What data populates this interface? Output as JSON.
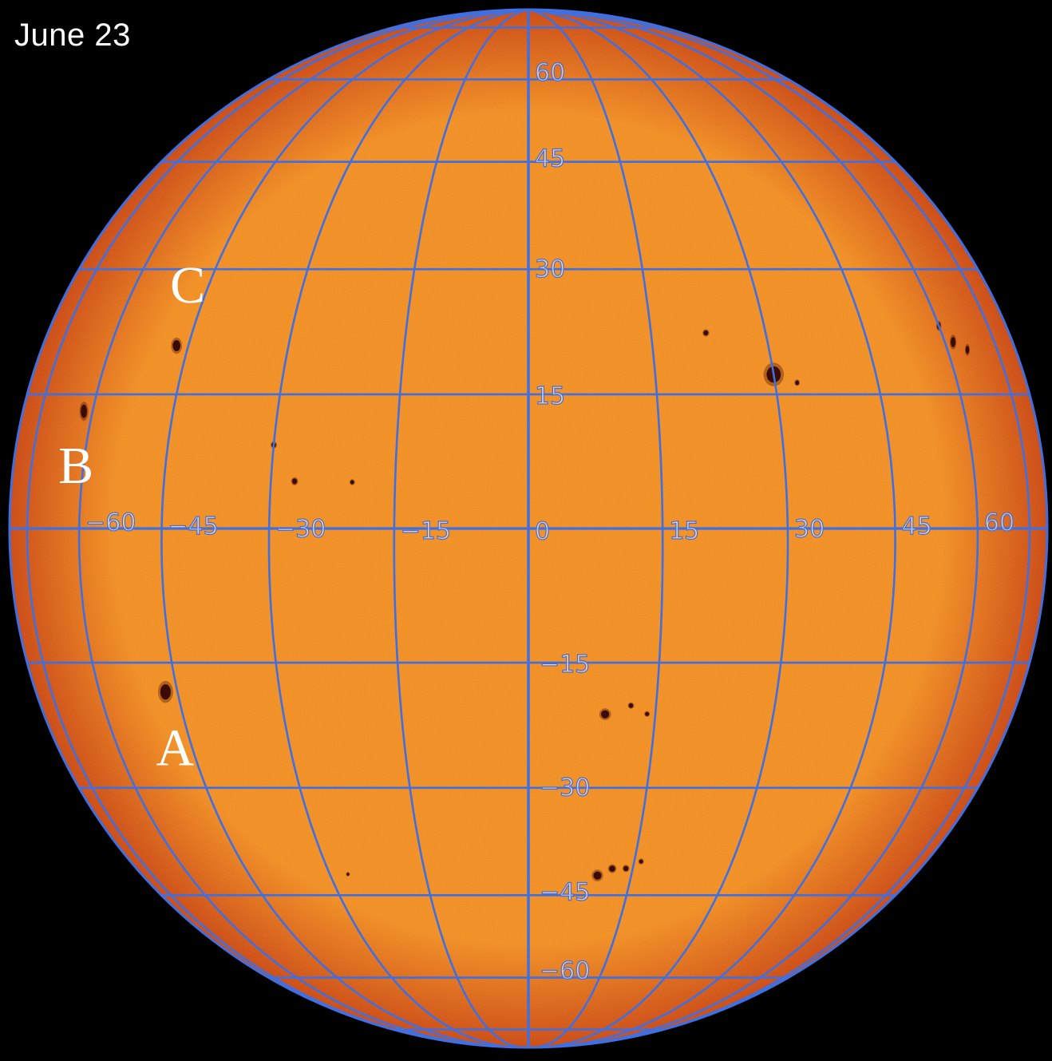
{
  "date_label": "June 23",
  "colors": {
    "background": "#000000",
    "photosphere": "#f08a1c",
    "limb": "#c8420c",
    "grid": "#3f6fe0",
    "spot": "#3a0a04",
    "text": "#ffffff"
  },
  "grid": {
    "longitudes": [
      -75,
      -60,
      -45,
      -30,
      -15,
      0,
      15,
      30,
      45,
      60,
      75
    ],
    "latitudes": [
      -75,
      -60,
      -45,
      -30,
      -15,
      0,
      15,
      30,
      45,
      60,
      75
    ],
    "longitude_labels": [
      {
        "lon": -60,
        "text": "−60"
      },
      {
        "lon": -45,
        "text": "−45"
      },
      {
        "lon": -30,
        "text": "−30"
      },
      {
        "lon": -15,
        "text": "−15"
      },
      {
        "lon": 0,
        "text": "0"
      },
      {
        "lon": 15,
        "text": "15"
      },
      {
        "lon": 30,
        "text": "30"
      },
      {
        "lon": 45,
        "text": "45"
      },
      {
        "lon": 60,
        "text": "60"
      }
    ],
    "latitude_labels": [
      {
        "lat": 60,
        "text": "60"
      },
      {
        "lat": 45,
        "text": "45"
      },
      {
        "lat": 30,
        "text": "30"
      },
      {
        "lat": 15,
        "text": "15"
      },
      {
        "lat": -15,
        "text": "−15"
      },
      {
        "lat": -30,
        "text": "−30"
      },
      {
        "lat": -45,
        "text": "−45"
      },
      {
        "lat": -60,
        "text": "−60"
      }
    ]
  },
  "sunspot_markers": [
    {
      "label": "A",
      "lon": -47,
      "lat": -17
    },
    {
      "label": "B",
      "lon": -62,
      "lat": 14
    },
    {
      "label": "C",
      "lon": -47,
      "lat": 22
    }
  ],
  "sunspots": [
    {
      "lon": -47,
      "lat": -17,
      "size": 3
    },
    {
      "lon": -62,
      "lat": 14,
      "size": 2.6
    },
    {
      "lon": -47,
      "lat": 22,
      "size": 2.2
    },
    {
      "lon": -30,
      "lat": 11,
      "size": 1
    },
    {
      "lon": -27,
      "lat": 7,
      "size": 1.1
    },
    {
      "lon": -20,
      "lat": 7,
      "size": 0.8
    },
    {
      "lon": 22,
      "lat": 24,
      "size": 1
    },
    {
      "lon": 30,
      "lat": 19,
      "size": 3.2
    },
    {
      "lon": 33,
      "lat": 18,
      "size": 0.9
    },
    {
      "lon": 60,
      "lat": 24,
      "size": 1.4
    },
    {
      "lon": 62,
      "lat": 22,
      "size": 2
    },
    {
      "lon": 65,
      "lat": 21,
      "size": 1.6
    },
    {
      "lon": 9,
      "lat": -19,
      "size": 1.6
    },
    {
      "lon": 12,
      "lat": -18,
      "size": 0.9
    },
    {
      "lon": 14,
      "lat": -19,
      "size": 0.8
    },
    {
      "lon": 10,
      "lat": -40,
      "size": 1.6
    },
    {
      "lon": 12,
      "lat": -39,
      "size": 1.2
    },
    {
      "lon": 14,
      "lat": -39,
      "size": 1
    },
    {
      "lon": 16,
      "lat": -38,
      "size": 0.8
    },
    {
      "lon": -27,
      "lat": -40,
      "size": 0.6
    }
  ]
}
